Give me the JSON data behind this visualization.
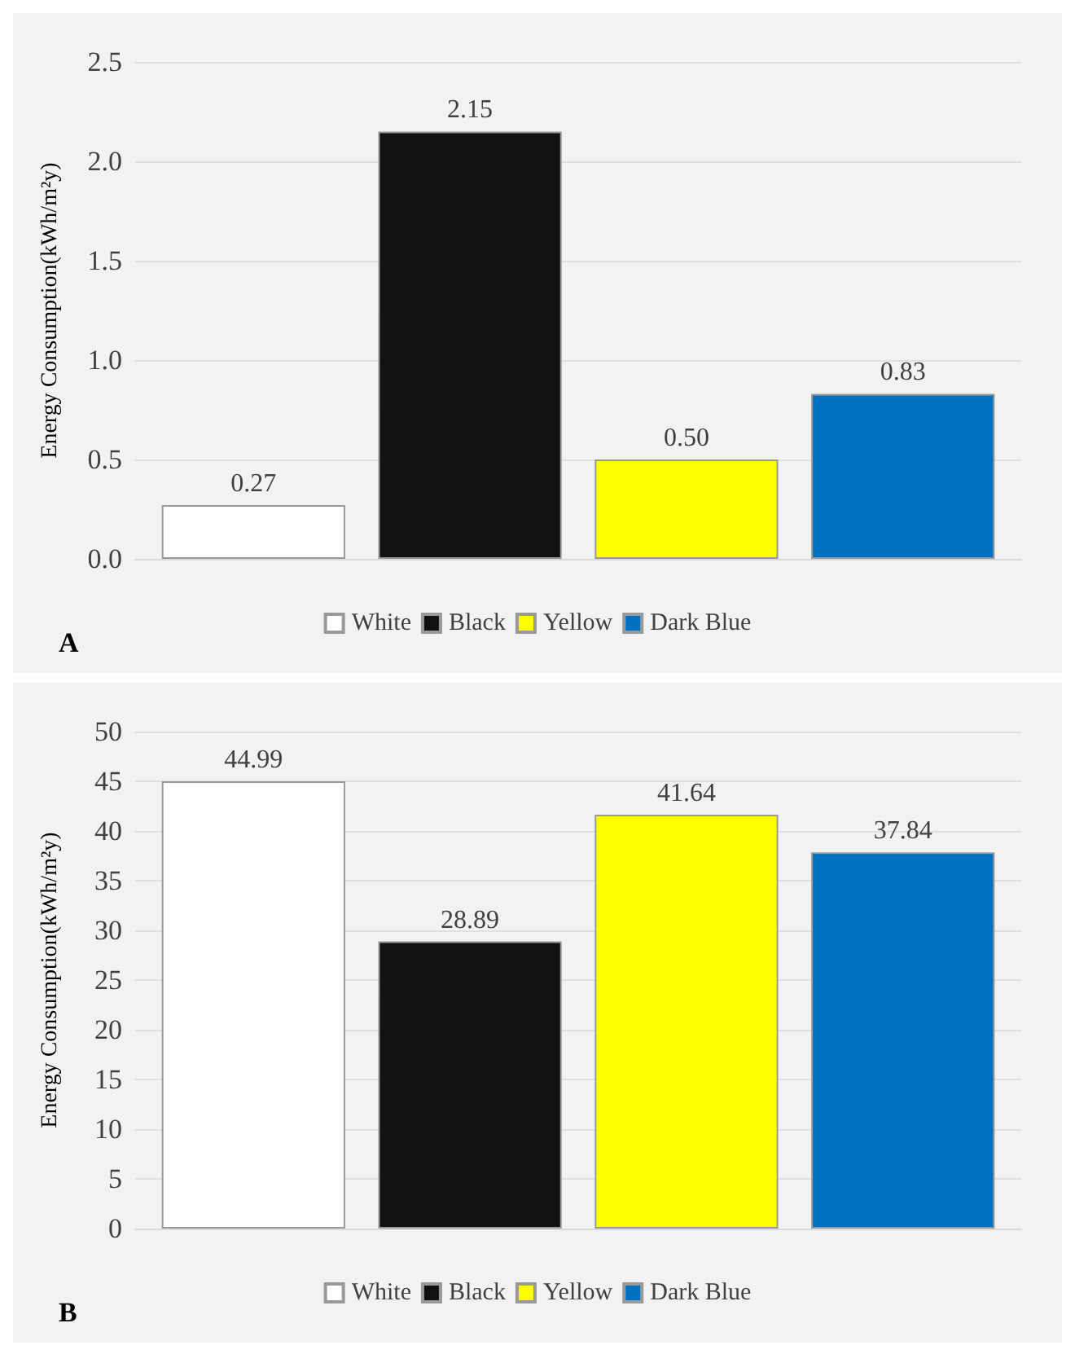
{
  "chart_data": [
    {
      "type": "bar",
      "ylabel": "Energy Consumption(kWh/m²y)",
      "categories": [
        null
      ],
      "series": [
        {
          "name": "White",
          "color": "#ffffff",
          "values": [
            0.27
          ],
          "value_labels": [
            "0.27"
          ]
        },
        {
          "name": "Black",
          "color": "#111111",
          "values": [
            2.15
          ],
          "value_labels": [
            "2.15"
          ]
        },
        {
          "name": "Yellow",
          "color": "#ffff00",
          "values": [
            0.5
          ],
          "value_labels": [
            "0.50"
          ]
        },
        {
          "name": "Dark Blue",
          "color": "#0070c0",
          "values": [
            0.83
          ],
          "value_labels": [
            "0.83"
          ]
        }
      ],
      "ylim": [
        0,
        2.5
      ],
      "yticks": [
        {
          "value": 0,
          "label": "0.0"
        },
        {
          "value": 0.5,
          "label": "0.5"
        },
        {
          "value": 1,
          "label": "1.0"
        },
        {
          "value": 1.5,
          "label": "1.5"
        },
        {
          "value": 2,
          "label": "2.0"
        },
        {
          "value": 2.5,
          "label": "2.5"
        }
      ],
      "grid": "y",
      "legend": "bottom",
      "annotations": [
        "A"
      ]
    },
    {
      "type": "bar",
      "ylabel": "Energy Consumption(kWh/m²y)",
      "categories": [
        null
      ],
      "series": [
        {
          "name": "White",
          "color": "#ffffff",
          "values": [
            44.99
          ],
          "value_labels": [
            "44.99"
          ]
        },
        {
          "name": "Black",
          "color": "#111111",
          "values": [
            28.89
          ],
          "value_labels": [
            "28.89"
          ]
        },
        {
          "name": "Yellow",
          "color": "#ffff00",
          "values": [
            41.64
          ],
          "value_labels": [
            "41.64"
          ]
        },
        {
          "name": "Dark Blue",
          "color": "#0070c0",
          "values": [
            37.84
          ],
          "value_labels": [
            "37.84"
          ]
        }
      ],
      "ylim": [
        0,
        50
      ],
      "yticks": [
        0,
        5,
        10,
        15,
        20,
        25,
        30,
        35,
        40,
        45,
        50
      ],
      "grid": "y",
      "legend": "bottom",
      "annotations": [
        "B"
      ]
    }
  ]
}
